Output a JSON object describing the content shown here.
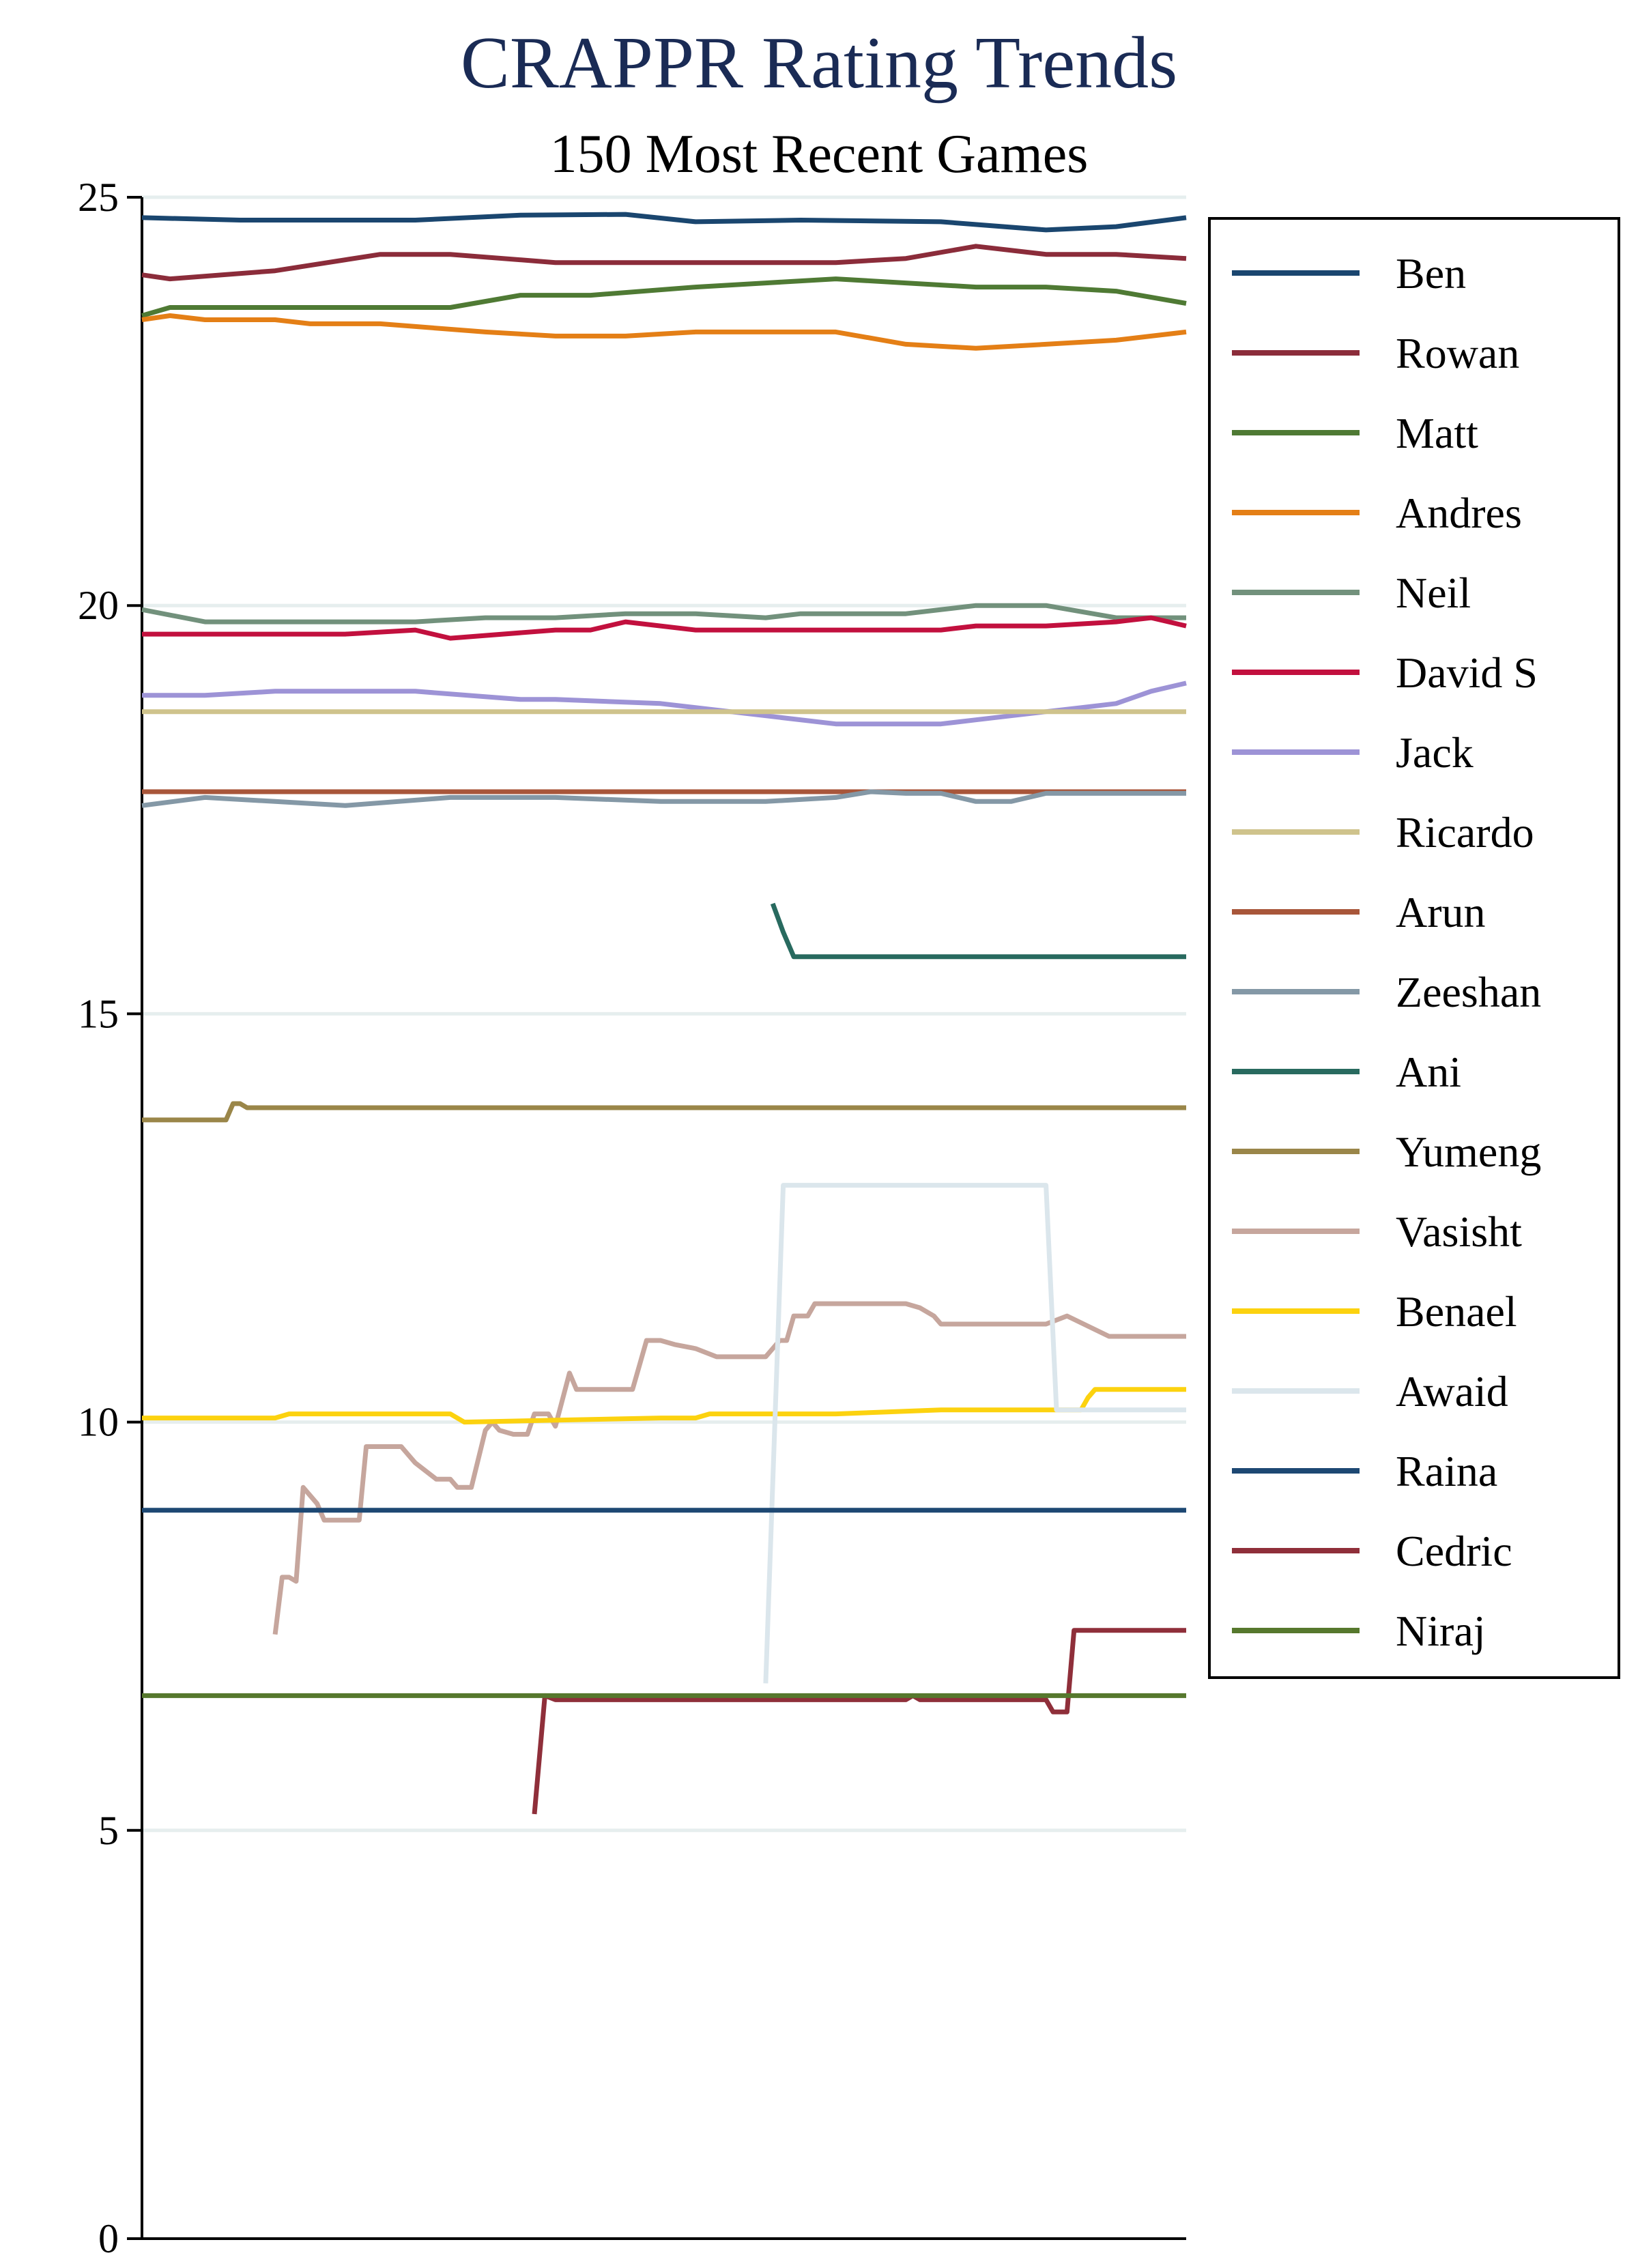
{
  "chart_data": {
    "type": "line",
    "title": "CRAPPR Rating Trends",
    "subtitle": "150 Most Recent Games",
    "xlabel": "",
    "ylabel": "",
    "xlim": [
      1,
      150
    ],
    "ylim": [
      0,
      25
    ],
    "yticks": [
      "0",
      "5",
      "10",
      "15",
      "20",
      "25"
    ],
    "grid": "horizontal",
    "legend_position": "right",
    "colors": {
      "title": "#1a2b55",
      "grid": "#e6eeee",
      "axis": "#000000"
    },
    "series": [
      {
        "name": "Ben",
        "color": "#1a466f",
        "x": [
          1,
          15,
          40,
          55,
          70,
          80,
          95,
          115,
          130,
          140,
          150
        ],
        "y": [
          24.75,
          24.72,
          24.72,
          24.78,
          24.79,
          24.7,
          24.72,
          24.7,
          24.6,
          24.64,
          24.75
        ]
      },
      {
        "name": "Rowan",
        "color": "#8b2c3a",
        "x": [
          1,
          5,
          20,
          35,
          45,
          60,
          70,
          90,
          100,
          110,
          120,
          130,
          140,
          150
        ],
        "y": [
          24.05,
          24.0,
          24.1,
          24.3,
          24.3,
          24.2,
          24.2,
          24.2,
          24.2,
          24.25,
          24.4,
          24.3,
          24.3,
          24.25
        ]
      },
      {
        "name": "Matt",
        "color": "#4f7a34",
        "x": [
          1,
          5,
          25,
          45,
          55,
          65,
          80,
          90,
          100,
          110,
          120,
          130,
          140,
          150
        ],
        "y": [
          23.55,
          23.65,
          23.65,
          23.65,
          23.8,
          23.8,
          23.9,
          23.95,
          24.0,
          23.95,
          23.9,
          23.9,
          23.85,
          23.7
        ]
      },
      {
        "name": "Andres",
        "color": "#e47f16",
        "x": [
          1,
          5,
          10,
          20,
          25,
          35,
          50,
          60,
          70,
          80,
          100,
          110,
          120,
          130,
          140,
          150
        ],
        "y": [
          23.5,
          23.55,
          23.5,
          23.5,
          23.45,
          23.45,
          23.35,
          23.3,
          23.3,
          23.35,
          23.35,
          23.2,
          23.15,
          23.2,
          23.25,
          23.35
        ]
      },
      {
        "name": "Neil",
        "color": "#72917c",
        "x": [
          1,
          10,
          20,
          40,
          50,
          60,
          70,
          80,
          90,
          95,
          105,
          110,
          120,
          130,
          140,
          150
        ],
        "y": [
          19.95,
          19.8,
          19.8,
          19.8,
          19.85,
          19.85,
          19.9,
          19.9,
          19.85,
          19.9,
          19.9,
          19.9,
          20.0,
          20.0,
          19.85,
          19.85
        ]
      },
      {
        "name": "David S",
        "color": "#c2103e",
        "x": [
          1,
          30,
          40,
          45,
          60,
          65,
          70,
          80,
          95,
          105,
          115,
          120,
          130,
          140,
          145,
          150
        ],
        "y": [
          19.65,
          19.65,
          19.7,
          19.6,
          19.7,
          19.7,
          19.8,
          19.7,
          19.7,
          19.7,
          19.7,
          19.75,
          19.75,
          19.8,
          19.85,
          19.75
        ]
      },
      {
        "name": "Jack",
        "color": "#9d93d6",
        "x": [
          1,
          10,
          20,
          30,
          40,
          55,
          60,
          75,
          90,
          100,
          110,
          115,
          120,
          125,
          130,
          135,
          140,
          145,
          150
        ],
        "y": [
          18.9,
          18.9,
          18.95,
          18.95,
          18.95,
          18.85,
          18.85,
          18.8,
          18.65,
          18.55,
          18.55,
          18.55,
          18.6,
          18.65,
          18.7,
          18.75,
          18.8,
          18.95,
          19.05
        ]
      },
      {
        "name": "Ricardo",
        "color": "#cfc38c",
        "x": [
          1,
          150
        ],
        "y": [
          18.7,
          18.7
        ]
      },
      {
        "name": "Arun",
        "color": "#a8563a",
        "x": [
          1,
          150
        ],
        "y": [
          17.72,
          17.72
        ]
      },
      {
        "name": "Zeeshan",
        "color": "#8498a6",
        "x": [
          1,
          10,
          20,
          30,
          45,
          60,
          75,
          85,
          90,
          100,
          105,
          110,
          115,
          120,
          125,
          130,
          150
        ],
        "y": [
          17.55,
          17.65,
          17.6,
          17.55,
          17.65,
          17.65,
          17.6,
          17.6,
          17.6,
          17.65,
          17.72,
          17.7,
          17.7,
          17.6,
          17.6,
          17.7,
          17.7
        ]
      },
      {
        "name": "Ani",
        "color": "#286a5f",
        "x": [
          91,
          92.5,
          94,
          150
        ],
        "y": [
          16.35,
          16.0,
          15.7,
          15.7
        ]
      },
      {
        "name": "Yumeng",
        "color": "#9a8649",
        "x": [
          1,
          13,
          14,
          15,
          16,
          150
        ],
        "y": [
          13.7,
          13.7,
          13.9,
          13.9,
          13.85,
          13.85
        ]
      },
      {
        "name": "Vasisht",
        "color": "#c6a69d",
        "x": [
          20,
          21,
          22,
          23,
          24,
          26,
          27,
          30,
          31,
          32,
          33,
          37,
          38,
          39,
          40,
          43,
          45,
          46,
          48,
          50,
          51,
          52,
          54,
          55,
          56,
          57,
          59,
          60,
          62,
          63,
          68,
          70,
          71,
          72,
          73,
          75,
          77,
          80,
          83,
          89,
          90,
          92,
          93,
          94,
          96,
          97,
          100,
          108,
          110,
          112,
          114,
          115,
          116,
          120,
          122,
          125,
          128,
          130,
          133,
          139,
          140,
          150
        ],
        "y": [
          7.4,
          8.1,
          8.1,
          8.05,
          9.2,
          9.0,
          8.8,
          8.8,
          8.8,
          8.8,
          9.7,
          9.7,
          9.7,
          9.6,
          9.5,
          9.3,
          9.3,
          9.2,
          9.2,
          9.9,
          10.0,
          9.9,
          9.85,
          9.85,
          9.85,
          10.1,
          10.1,
          9.95,
          10.6,
          10.4,
          10.4,
          10.4,
          10.4,
          10.7,
          11.0,
          11.0,
          10.95,
          10.9,
          10.8,
          10.8,
          10.8,
          11.0,
          11.0,
          11.3,
          11.3,
          11.45,
          11.45,
          11.45,
          11.45,
          11.4,
          11.3,
          11.2,
          11.2,
          11.2,
          11.2,
          11.2,
          11.2,
          11.2,
          11.3,
          11.05,
          11.05,
          11.05
        ]
      },
      {
        "name": "Benael",
        "color": "#fcd20f",
        "x": [
          1,
          20,
          22,
          45,
          47,
          75,
          80,
          82,
          85,
          100,
          115,
          120,
          130,
          135,
          136,
          137,
          150
        ],
        "y": [
          10.05,
          10.05,
          10.1,
          10.1,
          10.0,
          10.05,
          10.05,
          10.1,
          10.1,
          10.1,
          10.15,
          10.15,
          10.15,
          10.15,
          10.3,
          10.4,
          10.4
        ]
      },
      {
        "name": "Awaid",
        "color": "#dbe6ec",
        "x": [
          90,
          92.5,
          130,
          131.5,
          150
        ],
        "y": [
          6.8,
          12.9,
          12.9,
          10.15,
          10.15
        ]
      },
      {
        "name": "Raina",
        "color": "#1d4873",
        "x": [
          1,
          150
        ],
        "y": [
          8.92,
          8.92
        ]
      },
      {
        "name": "Cedric",
        "color": "#8f2f3a",
        "x": [
          57,
          58.5,
          60,
          70,
          90,
          100,
          110,
          111,
          112,
          120,
          125,
          130,
          131,
          132,
          133,
          134,
          150
        ],
        "y": [
          5.2,
          6.65,
          6.6,
          6.6,
          6.6,
          6.6,
          6.6,
          6.65,
          6.6,
          6.6,
          6.6,
          6.6,
          6.45,
          6.45,
          6.45,
          7.45,
          7.45
        ]
      },
      {
        "name": "Niraj",
        "color": "#56782d",
        "x": [
          1,
          150
        ],
        "y": [
          6.65,
          6.65
        ]
      }
    ]
  }
}
